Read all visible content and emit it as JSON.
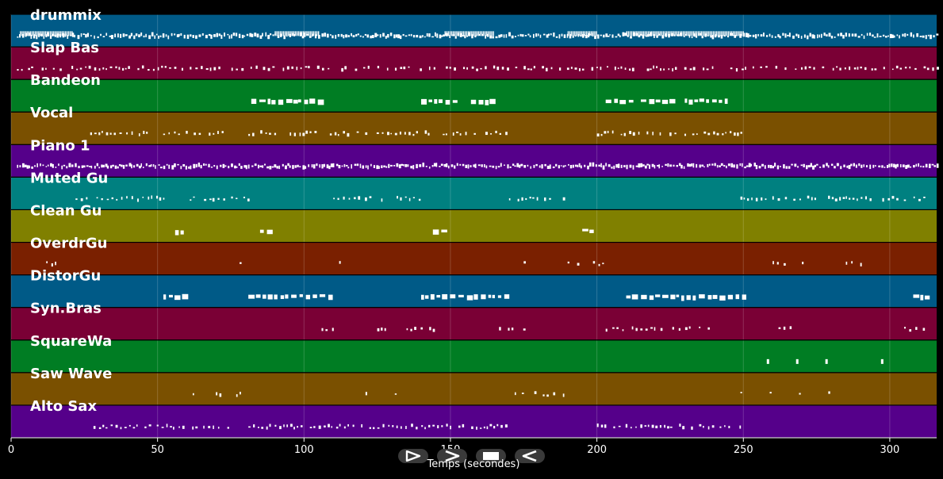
{
  "xaxis": {
    "label": "Temps (secondes)",
    "min": 0,
    "max": 316,
    "ticks": [
      0,
      50,
      100,
      150,
      200,
      250,
      300
    ]
  },
  "controls": [
    {
      "name": "play-button",
      "icon": "play-icon"
    },
    {
      "name": "fast-forward-button",
      "icon": "fast-forward-icon"
    },
    {
      "name": "stop-button",
      "icon": "stop-icon"
    },
    {
      "name": "rewind-button",
      "icon": "rewind-icon"
    }
  ],
  "tracks": [
    {
      "name": "drummix",
      "color": "#005a87",
      "density": "dense",
      "segments": [
        [
          2,
          316
        ]
      ],
      "busy": [
        [
          3,
          21
        ],
        [
          90,
          105
        ],
        [
          148,
          165
        ],
        [
          190,
          200
        ],
        [
          210,
          250
        ]
      ]
    },
    {
      "name": "Slap Bas",
      "color": "#7a0035",
      "density": "medium",
      "segments": [
        [
          2,
          316
        ]
      ]
    },
    {
      "name": "Bandeon",
      "color": "#007d23",
      "density": "blocks",
      "segments": [
        [
          82,
          97
        ],
        [
          98,
          105
        ],
        [
          140,
          151
        ],
        [
          157,
          165
        ],
        [
          203,
          212
        ],
        [
          215,
          225
        ],
        [
          230,
          245
        ]
      ]
    },
    {
      "name": "Vocal",
      "color": "#7a5000",
      "density": "medium",
      "segments": [
        [
          27,
          74
        ],
        [
          81,
          170
        ],
        [
          200,
          249
        ]
      ]
    },
    {
      "name": "Piano 1",
      "color": "#55008a",
      "density": "dense",
      "segments": [
        [
          2,
          316
        ]
      ]
    },
    {
      "name": "Muted Gu",
      "color": "#008080",
      "density": "medium",
      "segments": [
        [
          22,
          52
        ],
        [
          61,
          81
        ],
        [
          110,
          140
        ],
        [
          170,
          190
        ],
        [
          249,
          312
        ]
      ]
    },
    {
      "name": "Clean Gu",
      "color": "#808000",
      "density": "blocks",
      "segments": [
        [
          56,
          59
        ],
        [
          85,
          88
        ],
        [
          144,
          147
        ],
        [
          195,
          198
        ]
      ]
    },
    {
      "name": "OverdrGu",
      "color": "#7a2000",
      "density": "sparse",
      "segments": [
        [
          12,
          17
        ],
        [
          78,
          80
        ],
        [
          112,
          116
        ],
        [
          175,
          177
        ],
        [
          190,
          202
        ],
        [
          260,
          265
        ],
        [
          270,
          273
        ],
        [
          285,
          290
        ]
      ]
    },
    {
      "name": "DistorGu",
      "color": "#005a87",
      "density": "blocks",
      "segments": [
        [
          52,
          60
        ],
        [
          81,
          90
        ],
        [
          92,
          110
        ],
        [
          140,
          170
        ],
        [
          210,
          250
        ],
        [
          308,
          312
        ]
      ]
    },
    {
      "name": "Syn.Bras",
      "color": "#7a0035",
      "density": "sparse",
      "segments": [
        [
          90,
          91
        ],
        [
          106,
          110
        ],
        [
          125,
          128
        ],
        [
          135,
          145
        ],
        [
          165,
          175
        ],
        [
          203,
          240
        ],
        [
          262,
          268
        ],
        [
          303,
          312
        ]
      ]
    },
    {
      "name": "SquareWa",
      "color": "#007d23",
      "density": "points",
      "segments": [
        [
          258,
          259
        ],
        [
          268,
          269
        ],
        [
          278,
          279
        ],
        [
          297,
          298
        ]
      ]
    },
    {
      "name": "Saw Wave",
      "color": "#7a5000",
      "density": "sparse",
      "segments": [
        [
          62,
          63
        ],
        [
          67,
          80
        ],
        [
          121,
          122
        ],
        [
          131,
          132
        ],
        [
          170,
          190
        ],
        [
          249,
          250
        ],
        [
          259,
          260
        ],
        [
          269,
          270
        ],
        [
          279,
          280
        ],
        [
          298,
          299
        ]
      ]
    },
    {
      "name": "Alto Sax",
      "color": "#55008a",
      "density": "medium",
      "segments": [
        [
          27,
          74
        ],
        [
          81,
          170
        ],
        [
          200,
          249
        ]
      ]
    }
  ]
}
